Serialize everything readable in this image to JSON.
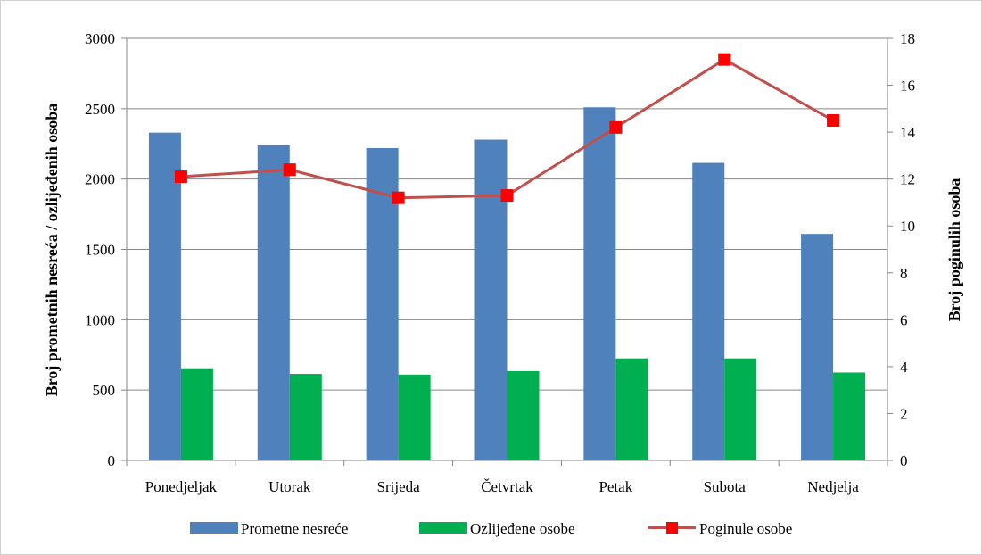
{
  "chart_data": {
    "type": "bar",
    "categories": [
      "Ponedjeljak",
      "Utorak",
      "Srijeda",
      "Četvrtak",
      "Petak",
      "Subota",
      "Nedjelja"
    ],
    "series": [
      {
        "name": "Prometne nesreće",
        "type": "bar",
        "axis": "left",
        "color": "#4f81bd",
        "values": [
          2330,
          2240,
          2220,
          2280,
          2510,
          2115,
          1610
        ]
      },
      {
        "name": "Ozlijeđene osobe",
        "type": "bar",
        "axis": "left",
        "color": "#00b050",
        "values": [
          655,
          615,
          610,
          635,
          725,
          725,
          625
        ]
      },
      {
        "name": "Poginule osobe",
        "type": "line",
        "axis": "right",
        "color": "#c0504d",
        "marker_color": "#ff0000",
        "values": [
          12.1,
          12.4,
          11.2,
          11.3,
          14.2,
          17.1,
          14.5
        ]
      }
    ],
    "ylabel": "Broj prometnih nesreća / ozlijeđenih osoba",
    "ylabel_right": "Broj poginulih osoba",
    "ylim": [
      0,
      3000
    ],
    "ylim_right": [
      0,
      18
    ],
    "yticks": [
      "0",
      "500",
      "1000",
      "1500",
      "2000",
      "2500",
      "3000"
    ],
    "yticks_right": [
      "0",
      "2",
      "4",
      "6",
      "8",
      "10",
      "12",
      "14",
      "16",
      "18"
    ],
    "grid": true,
    "legend_position": "bottom"
  }
}
